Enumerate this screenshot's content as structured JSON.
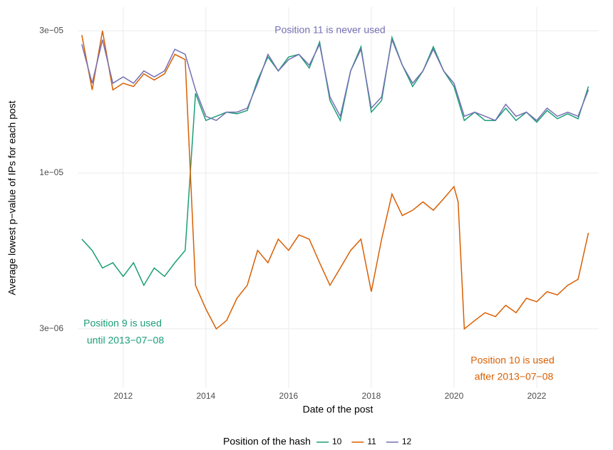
{
  "chart_data": {
    "type": "line",
    "x_label": "Date of the post",
    "y_label": "Average lowest p−value of IPs for each post",
    "log_y": true,
    "grid": true,
    "xlim": [
      2010.9,
      2023.5
    ],
    "xticks": [
      2012,
      2014,
      2016,
      2018,
      2020,
      2022
    ],
    "ylim": [
      1.9e-06,
      3.6e-05
    ],
    "yticks": [
      {
        "value": 3e-06,
        "label": "3e−06"
      },
      {
        "value": 1e-05,
        "label": "1e−05"
      },
      {
        "value": 3e-05,
        "label": "3e−05"
      }
    ],
    "legend_title": "Position of the hash",
    "legend_position": "bottom",
    "series": [
      {
        "name": "10",
        "color": "#1b9e77",
        "x": [
          2011.0,
          2011.25,
          2011.5,
          2011.75,
          2012.0,
          2012.25,
          2012.5,
          2012.75,
          2013.0,
          2013.25,
          2013.5,
          2013.75,
          2014.0,
          2014.25,
          2014.5,
          2014.75,
          2015.0,
          2015.25,
          2015.5,
          2015.75,
          2016.0,
          2016.25,
          2016.5,
          2016.75,
          2017.0,
          2017.25,
          2017.5,
          2017.75,
          2018.0,
          2018.25,
          2018.5,
          2018.75,
          2019.0,
          2019.25,
          2019.5,
          2019.75,
          2020.0,
          2020.25,
          2020.5,
          2020.75,
          2021.0,
          2021.25,
          2021.5,
          2021.75,
          2022.0,
          2022.25,
          2022.5,
          2022.75,
          2023.0,
          2023.25
        ],
        "values": [
          6e-06,
          5.5e-06,
          4.8e-06,
          5e-06,
          4.5e-06,
          5e-06,
          4.2e-06,
          4.8e-06,
          4.5e-06,
          5e-06,
          5.5e-06,
          1.85e-05,
          1.5e-05,
          1.55e-05,
          1.6e-05,
          1.58e-05,
          1.62e-05,
          2.05e-05,
          2.45e-05,
          2.2e-05,
          2.45e-05,
          2.5e-05,
          2.25e-05,
          2.75e-05,
          1.75e-05,
          1.5e-05,
          2.2e-05,
          2.65e-05,
          1.6e-05,
          1.75e-05,
          2.85e-05,
          2.3e-05,
          1.95e-05,
          2.2e-05,
          2.65e-05,
          2.2e-05,
          1.95e-05,
          1.5e-05,
          1.6e-05,
          1.5e-05,
          1.5e-05,
          1.65e-05,
          1.5e-05,
          1.6e-05,
          1.48e-05,
          1.62e-05,
          1.52e-05,
          1.58e-05,
          1.52e-05,
          1.95e-05
        ]
      },
      {
        "name": "11",
        "color": "#d95f02",
        "x": [
          2011.0,
          2011.25,
          2011.5,
          2011.75,
          2012.0,
          2012.25,
          2012.5,
          2012.75,
          2013.0,
          2013.25,
          2013.5,
          2013.75,
          2014.0,
          2014.25,
          2014.5,
          2014.75,
          2015.0,
          2015.25,
          2015.5,
          2015.75,
          2016.0,
          2016.25,
          2016.5,
          2016.75,
          2017.0,
          2017.25,
          2017.5,
          2017.75,
          2018.0,
          2018.25,
          2018.5,
          2018.75,
          2019.0,
          2019.25,
          2019.5,
          2019.75,
          2020.0,
          2020.1,
          2020.25,
          2020.5,
          2020.75,
          2021.0,
          2021.25,
          2021.5,
          2021.75,
          2022.0,
          2022.25,
          2022.5,
          2022.75,
          2023.0,
          2023.25
        ],
        "values": [
          2.9e-05,
          1.9e-05,
          3e-05,
          1.9e-05,
          2e-05,
          1.95e-05,
          2.15e-05,
          2.05e-05,
          2.15e-05,
          2.5e-05,
          2.4e-05,
          4.2e-06,
          3.5e-06,
          3e-06,
          3.2e-06,
          3.8e-06,
          4.2e-06,
          5.5e-06,
          5e-06,
          6e-06,
          5.5e-06,
          6.2e-06,
          6e-06,
          5e-06,
          4.2e-06,
          4.8e-06,
          5.5e-06,
          6e-06,
          4e-06,
          6e-06,
          8.5e-06,
          7.2e-06,
          7.5e-06,
          8e-06,
          7.5e-06,
          8.2e-06,
          9e-06,
          8e-06,
          3e-06,
          3.2e-06,
          3.4e-06,
          3.3e-06,
          3.6e-06,
          3.4e-06,
          3.8e-06,
          3.7e-06,
          4e-06,
          3.9e-06,
          4.2e-06,
          4.4e-06,
          6.3e-06
        ]
      },
      {
        "name": "12",
        "color": "#7570b3",
        "x": [
          2011.0,
          2011.25,
          2011.5,
          2011.75,
          2012.0,
          2012.25,
          2012.5,
          2012.75,
          2013.0,
          2013.25,
          2013.5,
          2013.75,
          2014.0,
          2014.25,
          2014.5,
          2014.75,
          2015.0,
          2015.25,
          2015.5,
          2015.75,
          2016.0,
          2016.25,
          2016.5,
          2016.75,
          2017.0,
          2017.25,
          2017.5,
          2017.75,
          2018.0,
          2018.25,
          2018.5,
          2018.75,
          2019.0,
          2019.25,
          2019.5,
          2019.75,
          2020.0,
          2020.25,
          2020.5,
          2020.75,
          2021.0,
          2021.25,
          2021.5,
          2021.75,
          2022.0,
          2022.25,
          2022.5,
          2022.75,
          2023.0,
          2023.25
        ],
        "values": [
          2.7e-05,
          2e-05,
          2.8e-05,
          2e-05,
          2.1e-05,
          2e-05,
          2.2e-05,
          2.1e-05,
          2.2e-05,
          2.6e-05,
          2.5e-05,
          1.9e-05,
          1.55e-05,
          1.5e-05,
          1.6e-05,
          1.6e-05,
          1.65e-05,
          2e-05,
          2.5e-05,
          2.2e-05,
          2.4e-05,
          2.5e-05,
          2.3e-05,
          2.7e-05,
          1.8e-05,
          1.55e-05,
          2.2e-05,
          2.6e-05,
          1.65e-05,
          1.8e-05,
          2.8e-05,
          2.3e-05,
          2e-05,
          2.2e-05,
          2.6e-05,
          2.2e-05,
          2e-05,
          1.55e-05,
          1.6e-05,
          1.55e-05,
          1.5e-05,
          1.7e-05,
          1.55e-05,
          1.6e-05,
          1.5e-05,
          1.65e-05,
          1.55e-05,
          1.6e-05,
          1.55e-05,
          1.9e-05
        ]
      }
    ],
    "annotations": [
      {
        "lines": [
          "Position 11 is never used"
        ],
        "color": "#7570b3"
      },
      {
        "lines": [
          "Position 9 is used",
          "until 2013−07−08"
        ],
        "color": "#1b9e77"
      },
      {
        "lines": [
          "Position 10 is used",
          "after 2013−07−08"
        ],
        "color": "#d95f02"
      }
    ]
  }
}
